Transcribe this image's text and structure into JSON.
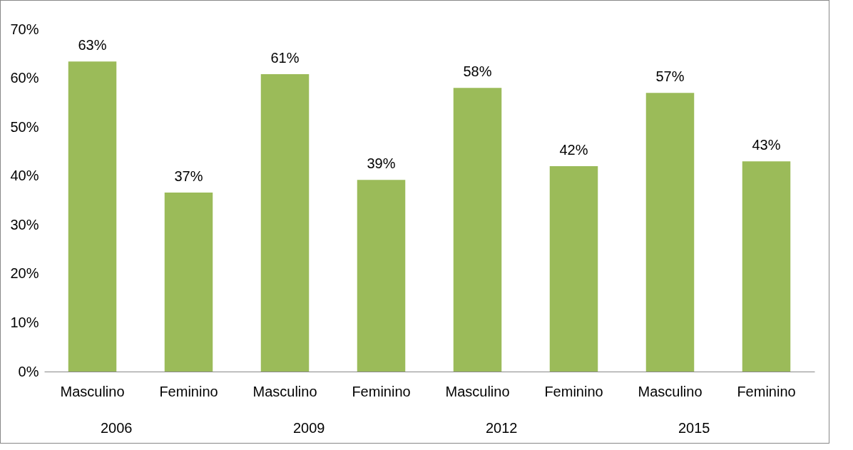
{
  "chart_data": {
    "type": "bar",
    "categories": [
      "Masculino",
      "Feminino",
      "Masculino",
      "Feminino",
      "Masculino",
      "Feminino",
      "Masculino",
      "Feminino"
    ],
    "values": [
      63.4,
      36.6,
      60.8,
      39.2,
      58,
      42,
      57,
      43
    ],
    "value_labels": [
      "63%",
      "37%",
      "61%",
      "39%",
      "58%",
      "42%",
      "57%",
      "43%"
    ],
    "color": "#9bbb59",
    "ylim": [
      0,
      70
    ],
    "yticks": [
      {
        "value": 0,
        "label": "0%"
      },
      {
        "value": 10,
        "label": "10%"
      },
      {
        "value": 20,
        "label": "20%"
      },
      {
        "value": 30,
        "label": "30%"
      },
      {
        "value": 40,
        "label": "40%"
      },
      {
        "value": 50,
        "label": "50%"
      },
      {
        "value": 60,
        "label": "60%"
      },
      {
        "value": 70,
        "label": "70%"
      }
    ],
    "annotations": [
      "2006",
      "2009",
      "2012",
      "2015"
    ],
    "grid": false
  }
}
